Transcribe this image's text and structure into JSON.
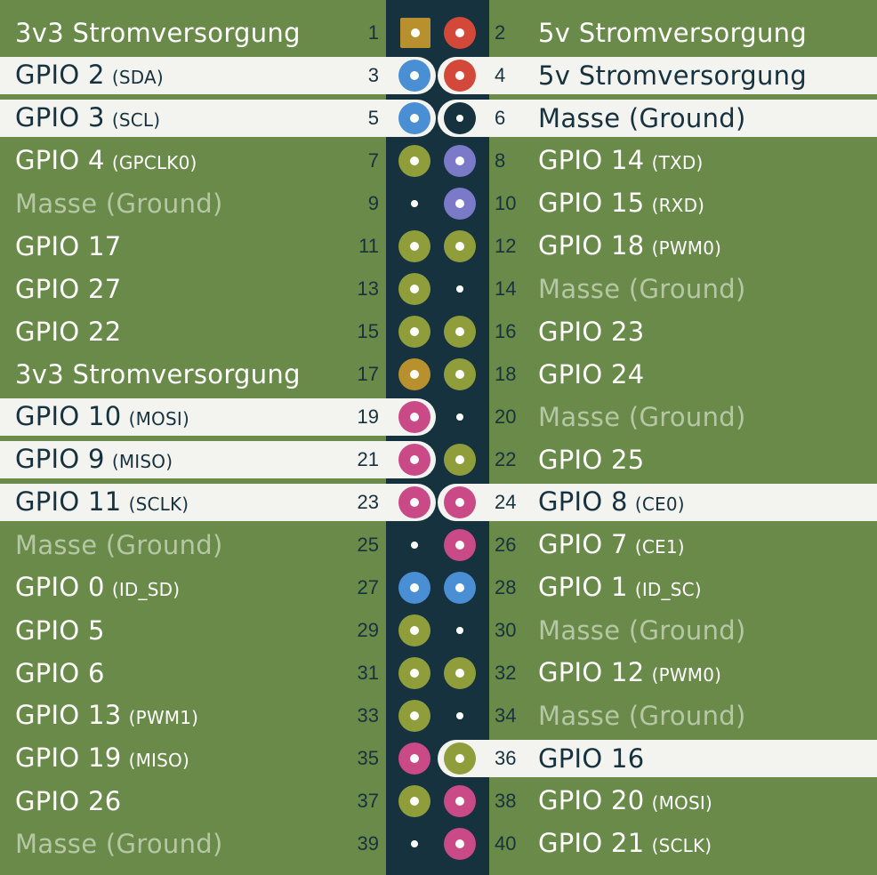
{
  "colors": {
    "background": "#6a8a4a",
    "header_strip": "#17323f",
    "highlight_row": "#f3f3ef",
    "power_3v3": "#b8912e",
    "power_5v": "#d4483a",
    "ground": "#17323f",
    "gpio": "#8f9e3a",
    "i2c": "#4a8fd4",
    "uart": "#7b7ac8",
    "spi": "#c94a86"
  },
  "rows": [
    {
      "left": {
        "pin": "1",
        "label": "3v3 Stromversorgung",
        "sub": "",
        "type": "power_3v3",
        "highlight": false
      },
      "right": {
        "pin": "2",
        "label": "5v Stromversorgung",
        "sub": "",
        "type": "power_5v",
        "highlight": false
      }
    },
    {
      "left": {
        "pin": "3",
        "label": "GPIO 2",
        "sub": "(SDA)",
        "type": "i2c",
        "highlight": true
      },
      "right": {
        "pin": "4",
        "label": "5v Stromversorgung",
        "sub": "",
        "type": "power_5v",
        "highlight": true
      }
    },
    {
      "left": {
        "pin": "5",
        "label": "GPIO 3",
        "sub": "(SCL)",
        "type": "i2c",
        "highlight": true
      },
      "right": {
        "pin": "6",
        "label": "Masse (Ground)",
        "sub": "",
        "type": "ground",
        "highlight": true
      }
    },
    {
      "left": {
        "pin": "7",
        "label": "GPIO 4",
        "sub": "(GPCLK0)",
        "type": "gpio",
        "highlight": false
      },
      "right": {
        "pin": "8",
        "label": "GPIO 14",
        "sub": "(TXD)",
        "type": "uart",
        "highlight": false
      }
    },
    {
      "left": {
        "pin": "9",
        "label": "Masse (Ground)",
        "sub": "",
        "type": "ground",
        "highlight": false
      },
      "right": {
        "pin": "10",
        "label": "GPIO 15",
        "sub": "(RXD)",
        "type": "uart",
        "highlight": false
      }
    },
    {
      "left": {
        "pin": "11",
        "label": "GPIO 17",
        "sub": "",
        "type": "gpio",
        "highlight": false
      },
      "right": {
        "pin": "12",
        "label": "GPIO 18",
        "sub": "(PWM0)",
        "type": "gpio",
        "highlight": false
      }
    },
    {
      "left": {
        "pin": "13",
        "label": "GPIO 27",
        "sub": "",
        "type": "gpio",
        "highlight": false
      },
      "right": {
        "pin": "14",
        "label": "Masse (Ground)",
        "sub": "",
        "type": "ground",
        "highlight": false
      }
    },
    {
      "left": {
        "pin": "15",
        "label": "GPIO 22",
        "sub": "",
        "type": "gpio",
        "highlight": false
      },
      "right": {
        "pin": "16",
        "label": "GPIO 23",
        "sub": "",
        "type": "gpio",
        "highlight": false
      }
    },
    {
      "left": {
        "pin": "17",
        "label": "3v3 Stromversorgung",
        "sub": "",
        "type": "power_3v3",
        "highlight": false
      },
      "right": {
        "pin": "18",
        "label": "GPIO 24",
        "sub": "",
        "type": "gpio",
        "highlight": false
      }
    },
    {
      "left": {
        "pin": "19",
        "label": "GPIO 10",
        "sub": "(MOSI)",
        "type": "spi",
        "highlight": true
      },
      "right": {
        "pin": "20",
        "label": "Masse (Ground)",
        "sub": "",
        "type": "ground",
        "highlight": false
      }
    },
    {
      "left": {
        "pin": "21",
        "label": "GPIO 9",
        "sub": "(MISO)",
        "type": "spi",
        "highlight": true
      },
      "right": {
        "pin": "22",
        "label": "GPIO 25",
        "sub": "",
        "type": "gpio",
        "highlight": false
      }
    },
    {
      "left": {
        "pin": "23",
        "label": "GPIO 11",
        "sub": "(SCLK)",
        "type": "spi",
        "highlight": true
      },
      "right": {
        "pin": "24",
        "label": "GPIO 8",
        "sub": "(CE0)",
        "type": "spi",
        "highlight": true
      }
    },
    {
      "left": {
        "pin": "25",
        "label": "Masse (Ground)",
        "sub": "",
        "type": "ground",
        "highlight": false
      },
      "right": {
        "pin": "26",
        "label": "GPIO 7",
        "sub": "(CE1)",
        "type": "spi",
        "highlight": false
      }
    },
    {
      "left": {
        "pin": "27",
        "label": "GPIO 0",
        "sub": "(ID_SD)",
        "type": "i2c",
        "highlight": false
      },
      "right": {
        "pin": "28",
        "label": "GPIO 1",
        "sub": "(ID_SC)",
        "type": "i2c",
        "highlight": false
      }
    },
    {
      "left": {
        "pin": "29",
        "label": "GPIO 5",
        "sub": "",
        "type": "gpio",
        "highlight": false
      },
      "right": {
        "pin": "30",
        "label": "Masse (Ground)",
        "sub": "",
        "type": "ground",
        "highlight": false
      }
    },
    {
      "left": {
        "pin": "31",
        "label": "GPIO 6",
        "sub": "",
        "type": "gpio",
        "highlight": false
      },
      "right": {
        "pin": "32",
        "label": "GPIO 12",
        "sub": "(PWM0)",
        "type": "gpio",
        "highlight": false
      }
    },
    {
      "left": {
        "pin": "33",
        "label": "GPIO 13",
        "sub": "(PWM1)",
        "type": "gpio",
        "highlight": false
      },
      "right": {
        "pin": "34",
        "label": "Masse (Ground)",
        "sub": "",
        "type": "ground",
        "highlight": false
      }
    },
    {
      "left": {
        "pin": "35",
        "label": "GPIO 19",
        "sub": "(MISO)",
        "type": "spi",
        "highlight": false
      },
      "right": {
        "pin": "36",
        "label": "GPIO 16",
        "sub": "",
        "type": "gpio",
        "highlight": true
      }
    },
    {
      "left": {
        "pin": "37",
        "label": "GPIO 26",
        "sub": "",
        "type": "gpio",
        "highlight": false
      },
      "right": {
        "pin": "38",
        "label": "GPIO 20",
        "sub": "(MOSI)",
        "type": "spi",
        "highlight": false
      }
    },
    {
      "left": {
        "pin": "39",
        "label": "Masse (Ground)",
        "sub": "",
        "type": "ground",
        "highlight": false
      },
      "right": {
        "pin": "40",
        "label": "GPIO 21",
        "sub": "(SCLK)",
        "type": "spi",
        "highlight": false
      }
    }
  ]
}
